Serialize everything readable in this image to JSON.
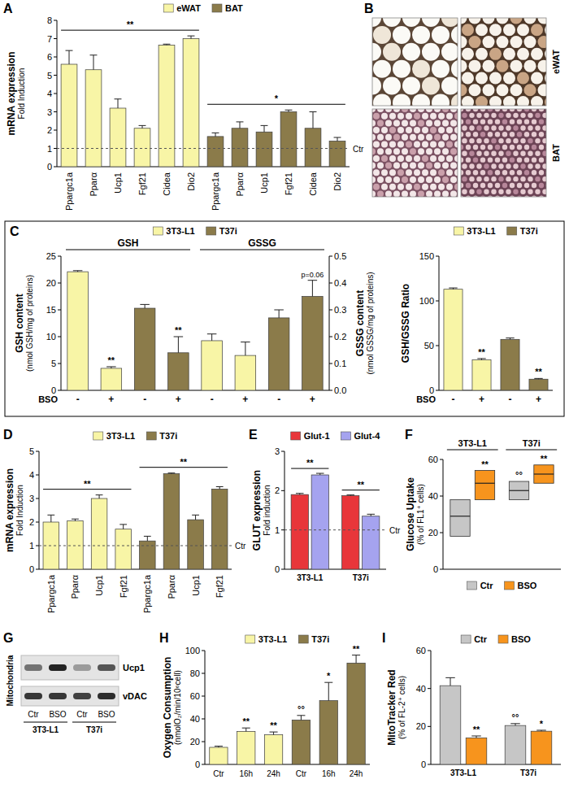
{
  "chart_data": [
    {
      "panel": "A",
      "type": "bar",
      "y_label": "mRNA expression",
      "y_sublabel": "Fold Induction",
      "categories": [
        "Ppargc1a",
        "Pparα",
        "Ucp1",
        "Fgf21",
        "Cidea",
        "Dio2"
      ],
      "series": [
        {
          "name": "eWAT",
          "color": "#f8f5a6",
          "values": [
            5.6,
            5.3,
            3.2,
            2.1,
            6.65,
            7.0
          ],
          "errors": [
            0.75,
            0.8,
            0.5,
            0.15,
            0.05,
            0.15
          ],
          "significance": "**"
        },
        {
          "name": "BAT",
          "color": "#8b7b4a",
          "values": [
            1.65,
            2.1,
            1.9,
            3.0,
            2.1,
            1.4
          ],
          "errors": [
            0.2,
            0.35,
            0.35,
            0.1,
            0.9,
            0.2
          ],
          "significance": "*"
        }
      ],
      "reference": {
        "value": 1,
        "label": "Ctr"
      },
      "ylim": [
        0,
        8
      ],
      "yticks": [
        0,
        1,
        2,
        3,
        4,
        5,
        6,
        7,
        8
      ],
      "legend": "top"
    },
    {
      "panel": "B",
      "type": "image",
      "labels": [
        "eWAT",
        "BAT"
      ]
    },
    {
      "panel": "C",
      "type": "bar",
      "y_label": "GSH content",
      "y_sublabel": "(nmol GSH/mg of proteins)",
      "y2_label": "GSSG content",
      "y2_sublabel": "(nmol GSSG/mg of proteins)",
      "row_label": "BSO",
      "bso_labels": [
        "-",
        "+"
      ],
      "cell_lines": [
        {
          "name": "3T3-L1",
          "color": "#f8f5a6"
        },
        {
          "name": "T37i",
          "color": "#8b7b4a"
        }
      ],
      "measures": [
        {
          "name": "GSH",
          "axis": "y",
          "series": [
            {
              "values": [
                22.1,
                4.1
              ],
              "errors": [
                0.2,
                0.3
              ],
              "significance": [
                null,
                "**"
              ]
            },
            {
              "values": [
                15.3,
                7.0
              ],
              "errors": [
                0.7,
                3.0
              ],
              "significance": [
                null,
                "**"
              ]
            }
          ]
        },
        {
          "name": "GSSG",
          "axis": "y2",
          "series": [
            {
              "values": [
                0.185,
                0.13
              ],
              "errors": [
                0.025,
                0.05
              ]
            },
            {
              "values": [
                0.27,
                0.35
              ],
              "errors": [
                0.03,
                0.06
              ],
              "significance": [
                null,
                "p=0.06"
              ]
            }
          ]
        }
      ],
      "ylim": [
        0,
        25
      ],
      "yticks": [
        0,
        5,
        10,
        15,
        20,
        25
      ],
      "y2lim": [
        0,
        0.5
      ],
      "y2ticks": [
        {
          "value": 0,
          "label": "0.0"
        },
        0.1,
        0.2,
        0.3,
        0.4,
        0.5
      ],
      "legend": "top"
    },
    {
      "type": "bar",
      "y_label": "GSH/GSSG Ratio",
      "row_label": "BSO",
      "bso_labels": [
        "-",
        "+"
      ],
      "series": [
        {
          "name": "3T3-L1",
          "color": "#f8f5a6",
          "values": [
            113,
            34
          ],
          "errors": [
            1.5,
            1.5
          ],
          "significance": [
            null,
            "**"
          ]
        },
        {
          "name": "T37i",
          "color": "#8b7b4a",
          "values": [
            57,
            12.5
          ],
          "errors": [
            1.5,
            0.8
          ],
          "significance": [
            null,
            "**"
          ]
        }
      ],
      "ylim": [
        0,
        150
      ],
      "yticks": [
        0,
        50,
        100,
        150
      ],
      "legend": "top"
    },
    {
      "panel": "D",
      "type": "bar",
      "y_label": "mRNA expression",
      "y_sublabel": "Fold Induction",
      "categories": [
        "Ppargc1a",
        "Pparα",
        "Ucp1",
        "Fgf21"
      ],
      "series": [
        {
          "name": "3T3-L1",
          "color": "#f8f5a6",
          "values": [
            2.0,
            2.05,
            3.0,
            1.7
          ],
          "errors": [
            0.3,
            0.08,
            0.15,
            0.2
          ],
          "significance": "**"
        },
        {
          "name": "T37i",
          "color": "#8b7b4a",
          "values": [
            1.2,
            4.05,
            2.1,
            3.4
          ],
          "errors": [
            0.2,
            0.03,
            0.2,
            0.1
          ],
          "significance": "**"
        }
      ],
      "reference": {
        "value": 1,
        "label": "Ctr"
      },
      "ylim": [
        0,
        5
      ],
      "yticks": [
        0,
        1,
        2,
        3,
        4,
        5
      ],
      "legend": "top"
    },
    {
      "panel": "E",
      "type": "bar",
      "y_label": "GLUT expression",
      "y_sublabel": "Fold induction",
      "categories": [
        "3T3-L1",
        "T37i"
      ],
      "series": [
        {
          "name": "Glut-1",
          "color": "#e8363a",
          "values": [
            1.9,
            1.87
          ],
          "errors": [
            0.03,
            0.02
          ]
        },
        {
          "name": "Glut-4",
          "color": "#a5a3ef",
          "values": [
            2.4,
            1.35
          ],
          "errors": [
            0.04,
            0.05
          ]
        }
      ],
      "group_significance": [
        "**",
        "**"
      ],
      "reference": {
        "value": 1,
        "label": "Ctr"
      },
      "ylim": [
        0,
        3
      ],
      "yticks": [
        0,
        1,
        2,
        3
      ],
      "legend": "top"
    },
    {
      "panel": "F",
      "type": "box",
      "y_label": "Glucose Uptake",
      "y_sublabel": "(% of FL1⁺ cells)",
      "categories": [
        "3T3-L1",
        "T37i"
      ],
      "series": [
        {
          "name": "Ctr",
          "color": "#c6c6c6",
          "low": [
            18,
            38
          ],
          "median": [
            29,
            43
          ],
          "high": [
            38,
            48
          ],
          "significance": [
            null,
            "°°"
          ]
        },
        {
          "name": "BSO",
          "color": "#f7941d",
          "low": [
            38,
            47
          ],
          "median": [
            47,
            52
          ],
          "high": [
            54,
            57
          ],
          "significance": [
            "**",
            "**"
          ]
        }
      ],
      "ylim": [
        0,
        60
      ],
      "yticks": [
        0,
        20,
        40,
        60
      ],
      "legend": "bottom"
    },
    {
      "panel": "G",
      "type": "blot",
      "fraction": "Mitochondria",
      "proteins": [
        "Ucp1",
        "vDAC"
      ],
      "lanes": [
        "Ctr",
        "BSO",
        "Ctr",
        "BSO"
      ],
      "groups": [
        "3T3-L1",
        "T37i"
      ]
    },
    {
      "panel": "H",
      "type": "bar",
      "y_label": "Oxygen Consumption",
      "y_sublabel": "(nmolO₂/min/10⁶cell)",
      "categories": [
        "Ctr",
        "16h",
        "24h"
      ],
      "series": [
        {
          "name": "3T3-L1",
          "color": "#f8f5a6",
          "values": [
            15,
            29,
            26
          ],
          "errors": [
            1,
            3,
            2.5
          ],
          "significance": [
            null,
            "**",
            "**"
          ]
        },
        {
          "name": "T37i",
          "color": "#8b7b4a",
          "values": [
            39,
            56,
            89
          ],
          "errors": [
            4,
            16,
            7
          ],
          "significance": [
            "°°",
            "*",
            "**"
          ]
        }
      ],
      "ylim": [
        0,
        100
      ],
      "yticks": [
        0,
        20,
        40,
        60,
        80,
        100
      ],
      "legend": "top"
    },
    {
      "panel": "I",
      "type": "bar",
      "y_label": "MitoTracker Red",
      "y_sublabel": "(% of FL-2⁺ cells)",
      "categories": [
        "3T3-L1",
        "T37i"
      ],
      "series": [
        {
          "name": "Ctr",
          "color": "#c6c6c6",
          "values": [
            41.5,
            20.5
          ],
          "errors": [
            4.2,
            1
          ],
          "significance": [
            null,
            "°°"
          ]
        },
        {
          "name": "BSO",
          "color": "#f7941d",
          "values": [
            14,
            17.5
          ],
          "errors": [
            1,
            0.5
          ],
          "significance": [
            "**",
            "*"
          ]
        }
      ],
      "ylim": [
        0,
        60
      ],
      "yticks": [
        0,
        20,
        40,
        60
      ],
      "legend": "top"
    }
  ]
}
